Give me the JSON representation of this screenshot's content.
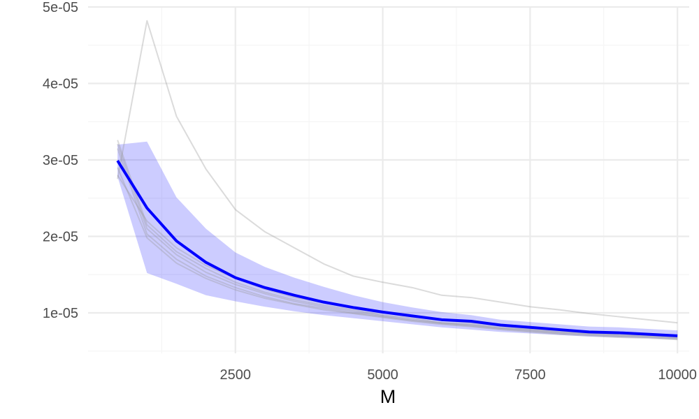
{
  "chart_data": {
    "type": "line",
    "title": "",
    "xlabel": "M",
    "ylabel": "",
    "xlim": [
      0,
      10200
    ],
    "ylim": [
      4.7e-06,
      5e-05
    ],
    "x_ticks": [
      2500,
      5000,
      7500,
      10000
    ],
    "x_tick_labels": [
      "2500",
      "5000",
      "7500",
      "10000"
    ],
    "y_ticks": [
      1e-05,
      2e-05,
      3e-05,
      4e-05,
      5e-05
    ],
    "y_tick_labels": [
      "1e-05",
      "2e-05",
      "3e-05",
      "4e-05",
      "5e-05"
    ],
    "x_minor_ticks": [
      1250,
      3750,
      6250,
      8750
    ],
    "y_minor_ticks": [
      5e-06,
      1.5e-05,
      2.5e-05,
      3.5e-05,
      4.5e-05
    ],
    "grid": true,
    "legend": "none",
    "colors": {
      "mean_line": "#0000ff",
      "ribbon": "#0000ff",
      "ribbon_opacity": 0.2,
      "thin_lines": "#999999",
      "grid_major": "#ebebeb",
      "grid_minor": "#f5f5f5"
    },
    "x": [
      500,
      1000,
      1500,
      2000,
      2500,
      3000,
      3500,
      4000,
      4500,
      5000,
      5500,
      6000,
      6500,
      7000,
      7500,
      8000,
      8500,
      9000,
      9500,
      10000
    ],
    "mean": [
      2.99e-05,
      2.37e-05,
      1.94e-05,
      1.66e-05,
      1.46e-05,
      1.33e-05,
      1.23e-05,
      1.14e-05,
      1.07e-05,
      1.01e-05,
      9.6e-06,
      9.1e-06,
      8.9e-06,
      8.4e-06,
      8.1e-06,
      7.8e-06,
      7.5e-06,
      7.4e-06,
      7.2e-06,
      7e-06
    ],
    "ribbon_lower": [
      2.78e-05,
      1.52e-05,
      1.38e-05,
      1.23e-05,
      1.15e-05,
      1.08e-05,
      1.02e-05,
      9.7e-06,
      9.3e-06,
      8.9e-06,
      8.5e-06,
      8.1e-06,
      7.8e-06,
      7.5e-06,
      7.3e-06,
      7.1e-06,
      6.9e-06,
      6.8e-06,
      6.7e-06,
      6.5e-06
    ],
    "ribbon_upper": [
      3.2e-05,
      3.24e-05,
      2.51e-05,
      2.1e-05,
      1.79e-05,
      1.6e-05,
      1.46e-05,
      1.34e-05,
      1.23e-05,
      1.14e-05,
      1.07e-05,
      1.01e-05,
      9.7e-06,
      9.1e-06,
      8.8e-06,
      8.5e-06,
      8.2e-06,
      8.1e-06,
      7.9e-06,
      7.7e-06
    ],
    "series": [
      {
        "values": [
          2.75e-05,
          4.82e-05,
          3.57e-05,
          2.88e-05,
          2.35e-05,
          2.06e-05,
          1.85e-05,
          1.64e-05,
          1.48e-05,
          1.4e-05,
          1.33e-05,
          1.23e-05,
          1.2e-05,
          1.14e-05,
          1.08e-05,
          1.04e-05,
          9.9e-06,
          9.5e-06,
          9.1e-06,
          8.7e-06
        ]
      },
      {
        "values": [
          3.26e-05,
          2.15e-05,
          1.8e-05,
          1.58e-05,
          1.4e-05,
          1.27e-05,
          1.17e-05,
          1.1e-05,
          1.04e-05,
          9.7e-06,
          9.3e-06,
          8.7e-06,
          8.5e-06,
          8e-06,
          7.8e-06,
          7.5e-06,
          7.3e-06,
          7.1e-06,
          7e-06,
          6.8e-06
        ]
      },
      {
        "values": [
          3.21e-05,
          2.1e-05,
          1.76e-05,
          1.53e-05,
          1.37e-05,
          1.25e-05,
          1.15e-05,
          1.08e-05,
          1.02e-05,
          9.6e-06,
          9.1e-06,
          8.7e-06,
          8.4e-06,
          8e-06,
          7.7e-06,
          7.4e-06,
          7.2e-06,
          7e-06,
          6.9e-06,
          6.7e-06
        ]
      },
      {
        "values": [
          3.15e-05,
          2.03e-05,
          1.7e-05,
          1.48e-05,
          1.33e-05,
          1.21e-05,
          1.12e-05,
          1.06e-05,
          1e-05,
          9.5e-06,
          9e-06,
          8.6e-06,
          8.3e-06,
          7.9e-06,
          7.6e-06,
          7.3e-06,
          7.1e-06,
          6.9e-06,
          6.8e-06,
          6.6e-06
        ]
      },
      {
        "values": [
          2.9e-05,
          1.98e-05,
          1.65e-05,
          1.45e-05,
          1.3e-05,
          1.19e-05,
          1.11e-05,
          1.04e-05,
          9.9e-06,
          9.4e-06,
          8.9e-06,
          8.5e-06,
          8.2e-06,
          7.8e-06,
          7.5e-06,
          7.2e-06,
          7e-06,
          6.8e-06,
          6.7e-06,
          6.5e-06
        ]
      },
      {
        "values": [
          2.8e-05,
          2.2e-05,
          1.85e-05,
          1.62e-05,
          1.45e-05,
          1.31e-05,
          1.2e-05,
          1.13e-05,
          1.06e-05,
          1e-05,
          9.5e-06,
          9e-06,
          8.7e-06,
          8.2e-06,
          7.9e-06,
          7.6e-06,
          7.4e-06,
          7.2e-06,
          7.1e-06,
          6.9e-06
        ]
      }
    ]
  }
}
